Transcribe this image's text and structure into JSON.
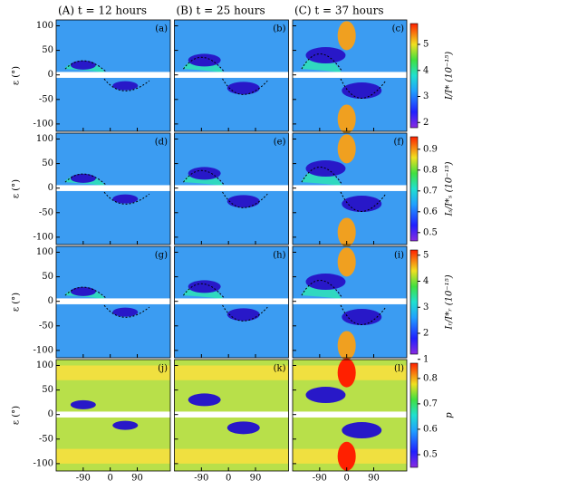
{
  "columns": [
    "(A) t = 12 hours",
    "(B) t = 25 hours",
    "(C) t = 37 hours"
  ],
  "y_label": "ε (°)",
  "panels": [
    [
      "(a)",
      "(b)",
      "(c)"
    ],
    [
      "(d)",
      "(e)",
      "(f)"
    ],
    [
      "(g)",
      "(h)",
      "(i)"
    ],
    [
      "(j)",
      "(k)",
      "(l)"
    ]
  ],
  "ylim": [
    -115,
    112
  ],
  "yticks": [
    100,
    50,
    0,
    -50,
    -100
  ],
  "xlim": [
    -180,
    200
  ],
  "xticks": [
    -90,
    0,
    90
  ],
  "colorbars": [
    {
      "label": "I/I* (10⁻¹⁵)",
      "lim": [
        1.8,
        5.8
      ],
      "ticks": [
        2,
        3,
        4,
        5
      ]
    },
    {
      "label": "Iₛ/I*ₛ (10⁻¹⁵)",
      "lim": [
        0.46,
        0.96
      ],
      "ticks": [
        0.5,
        0.6,
        0.7,
        0.8,
        0.9
      ]
    },
    {
      "label": "Iᵣ/I*ᵣ (10⁻¹⁵)",
      "lim": [
        1.2,
        5.2
      ],
      "ticks": [
        1,
        2,
        3,
        4,
        5
      ]
    },
    {
      "label": "p",
      "lim": [
        0.45,
        0.86
      ],
      "ticks": [
        0.5,
        0.6,
        0.7,
        0.8
      ]
    }
  ]
}
